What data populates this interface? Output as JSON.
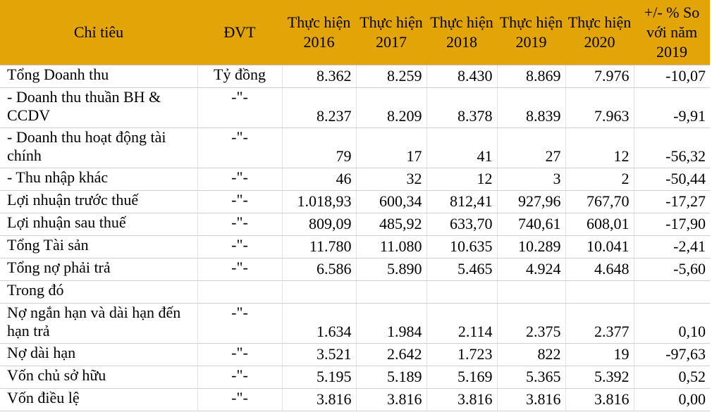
{
  "table": {
    "headers": [
      "Chỉ tiêu",
      "ĐVT",
      "Thực hiện 2016",
      "Thực hiện 2017",
      "Thực hiện 2018",
      "Thực hiện 2019",
      "Thực hiện 2020",
      "+/- % So với năm 2019"
    ],
    "rows": [
      {
        "label": "Tổng Doanh thu",
        "unit": "Tỷ đồng",
        "values": [
          "8.362",
          "8.259",
          "8.430",
          "8.869",
          "7.976",
          "-10,07"
        ]
      },
      {
        "label": "- Doanh thu thuần BH & CCDV",
        "unit": "-\"-",
        "values": [
          "8.237",
          "8.209",
          "8.378",
          "8.839",
          "7.963",
          "-9,91"
        ]
      },
      {
        "label": "- Doanh thu hoạt động tài chính",
        "unit": "-\"-",
        "values": [
          "79",
          "17",
          "41",
          "27",
          "12",
          "-56,32"
        ]
      },
      {
        "label": "- Thu nhập khác",
        "unit": "-\"-",
        "values": [
          "46",
          "32",
          "12",
          "3",
          "2",
          "-50,44"
        ]
      },
      {
        "label": "Lợi nhuận trước thuế",
        "unit": "-\"-",
        "values": [
          "1.018,93",
          "600,34",
          "812,41",
          "927,96",
          "767,70",
          "-17,27"
        ]
      },
      {
        "label": "Lợi nhuận sau thuế",
        "unit": "-\"-",
        "values": [
          "809,09",
          "485,92",
          "633,70",
          "740,61",
          "608,01",
          "-17,90"
        ]
      },
      {
        "label": "Tổng Tài sản",
        "unit": "-\"-",
        "values": [
          "11.780",
          "11.080",
          "10.635",
          "10.289",
          "10.041",
          "-2,41"
        ]
      },
      {
        "label": "Tổng nợ phải trả",
        "unit": "-\"-",
        "values": [
          "6.586",
          "5.890",
          "5.465",
          "4.924",
          "4.648",
          "-5,60"
        ]
      },
      {
        "label": "Trong đó",
        "unit": "",
        "values": [
          "",
          "",
          "",
          "",
          "",
          ""
        ]
      },
      {
        "label": "Nợ ngắn hạn và dài hạn đến hạn trả",
        "unit": "-\"-",
        "values": [
          "1.634",
          "1.984",
          "2.114",
          "2.375",
          "2.377",
          "0,10"
        ]
      },
      {
        "label": "Nợ dài hạn",
        "unit": "-\"-",
        "values": [
          "3.521",
          "2.642",
          "1.723",
          "822",
          "19",
          "-97,63"
        ]
      },
      {
        "label": "Vốn chủ sở hữu",
        "unit": "-\"-",
        "values": [
          "5.195",
          "5.189",
          "5.169",
          "5.365",
          "5.392",
          "0,52"
        ]
      },
      {
        "label": "Vốn điều lệ",
        "unit": "-\"-",
        "values": [
          "3.816",
          "3.816",
          "3.816",
          "3.816",
          "3.816",
          "0,00"
        ]
      }
    ]
  },
  "colors": {
    "header_background": "#e3a408"
  }
}
